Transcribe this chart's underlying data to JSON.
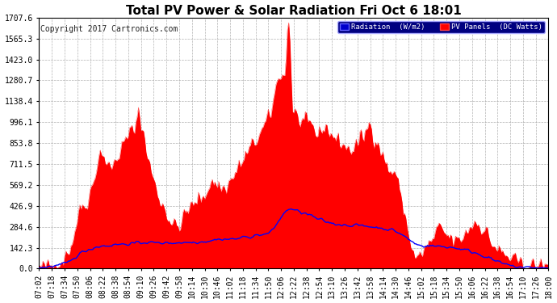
{
  "title": "Total PV Power & Solar Radiation Fri Oct 6 18:01",
  "copyright_text": "Copyright 2017 Cartronics.com",
  "legend_radiation": "Radiation  (W/m2)",
  "legend_pv": "PV Panels  (DC Watts)",
  "y_ticks": [
    0.0,
    142.3,
    284.6,
    426.9,
    569.2,
    711.5,
    853.8,
    996.1,
    1138.4,
    1280.7,
    1423.0,
    1565.3,
    1707.6
  ],
  "x_tick_labels": [
    "07:02",
    "07:18",
    "07:34",
    "07:50",
    "08:06",
    "08:22",
    "08:38",
    "08:54",
    "09:10",
    "09:26",
    "09:42",
    "09:58",
    "10:14",
    "10:30",
    "10:46",
    "11:02",
    "11:18",
    "11:34",
    "11:50",
    "12:06",
    "12:22",
    "12:38",
    "12:54",
    "13:10",
    "13:26",
    "13:42",
    "13:58",
    "14:14",
    "14:30",
    "14:46",
    "15:02",
    "15:18",
    "15:34",
    "15:50",
    "16:06",
    "16:22",
    "16:38",
    "16:54",
    "17:10",
    "17:26",
    "18:00"
  ],
  "background_color": "#ffffff",
  "plot_background": "#ffffff",
  "grid_color": "#aaaaaa",
  "pv_fill_color": "#ff0000",
  "radiation_line_color": "#0000ff",
  "title_color": "#000000",
  "ylim": [
    0,
    1707.6
  ],
  "title_fontsize": 11,
  "copyright_fontsize": 7,
  "axis_fontsize": 7
}
